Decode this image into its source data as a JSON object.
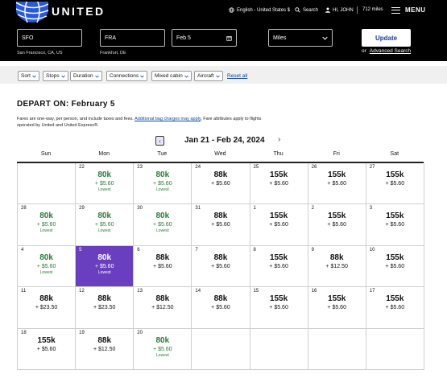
{
  "header": {
    "brand": "UNITED",
    "language": "English - United States $",
    "search": "Search",
    "user": "HI, JOHN",
    "miles": "712 miles",
    "menu": "MENU"
  },
  "search": {
    "from": "SFO",
    "from_sub": "San Francisco, CA, US",
    "to": "FRA",
    "to_sub": "Frankfurt, DE",
    "date": "Feb 5",
    "fare_type": "Miles",
    "update": "Update",
    "or": "or",
    "advanced": "Advanced Search"
  },
  "filters": [
    "Sort",
    "Stops",
    "Duration",
    "Connections",
    "Mixed cabin",
    "Aircraft"
  ],
  "reset_all": "Reset all",
  "depart_on": "DEPART ON: February 5",
  "note": {
    "pre": "Fares are one-way, per person, and include taxes and fees.",
    "link": "Additional bag charges may apply",
    "post": ", Fare attributes apply to flights operated by United and United Express®."
  },
  "calendar": {
    "range": "Jan 21 - Feb 24, 2024",
    "days": [
      "Sun",
      "Mon",
      "Tue",
      "Wed",
      "Thu",
      "Fri",
      "Sat"
    ],
    "lowest_label": "Lowest",
    "cells": [
      {
        "day": "",
        "price": "",
        "fee": "",
        "low": false
      },
      {
        "day": "22",
        "price": "80k",
        "fee": "+ $5.60",
        "low": true
      },
      {
        "day": "23",
        "price": "80k",
        "fee": "+ $5.60",
        "low": true
      },
      {
        "day": "24",
        "price": "88k",
        "fee": "+ $5.60",
        "low": false
      },
      {
        "day": "25",
        "price": "155k",
        "fee": "+ $5.60",
        "low": false
      },
      {
        "day": "26",
        "price": "155k",
        "fee": "+ $5.60",
        "low": false
      },
      {
        "day": "27",
        "price": "155k",
        "fee": "+ $5.60",
        "low": false
      },
      {
        "day": "28",
        "price": "80k",
        "fee": "+ $5.60",
        "low": true
      },
      {
        "day": "29",
        "price": "80k",
        "fee": "+ $5.60",
        "low": true
      },
      {
        "day": "30",
        "price": "80k",
        "fee": "+ $5.60",
        "low": true
      },
      {
        "day": "31",
        "price": "88k",
        "fee": "+ $5.60",
        "low": false
      },
      {
        "day": "1",
        "price": "155k",
        "fee": "+ $5.60",
        "low": false
      },
      {
        "day": "2",
        "price": "155k",
        "fee": "+ $5.60",
        "low": false
      },
      {
        "day": "3",
        "price": "155k",
        "fee": "+ $5.60",
        "low": false
      },
      {
        "day": "4",
        "price": "80k",
        "fee": "+ $5.60",
        "low": true
      },
      {
        "day": "5",
        "price": "80k",
        "fee": "+ $5.60",
        "low": true,
        "selected": true
      },
      {
        "day": "6",
        "price": "88k",
        "fee": "+ $5.60",
        "low": false
      },
      {
        "day": "7",
        "price": "88k",
        "fee": "+ $5.60",
        "low": false
      },
      {
        "day": "8",
        "price": "155k",
        "fee": "+ $5.60",
        "low": false
      },
      {
        "day": "9",
        "price": "88k",
        "fee": "+ $12.50",
        "low": false
      },
      {
        "day": "10",
        "price": "155k",
        "fee": "+ $5.60",
        "low": false
      },
      {
        "day": "11",
        "price": "88k",
        "fee": "+ $23.50",
        "low": false
      },
      {
        "day": "12",
        "price": "88k",
        "fee": "+ $23.50",
        "low": false
      },
      {
        "day": "13",
        "price": "88k",
        "fee": "+ $12.50",
        "low": false
      },
      {
        "day": "14",
        "price": "88k",
        "fee": "+ $5.60",
        "low": false
      },
      {
        "day": "15",
        "price": "155k",
        "fee": "+ $5.60",
        "low": false
      },
      {
        "day": "16",
        "price": "155k",
        "fee": "+ $5.60",
        "low": false
      },
      {
        "day": "17",
        "price": "155k",
        "fee": "+ $5.60",
        "low": false
      },
      {
        "day": "18",
        "price": "155k",
        "fee": "+ $5.60",
        "low": false
      },
      {
        "day": "19",
        "price": "88k",
        "fee": "+ $12.50",
        "low": false
      },
      {
        "day": "20",
        "price": "80k",
        "fee": "+ $5.60",
        "low": true
      },
      {
        "day": "",
        "price": "",
        "fee": "",
        "low": false
      },
      {
        "day": "",
        "price": "",
        "fee": "",
        "low": false
      },
      {
        "day": "",
        "price": "",
        "fee": "",
        "low": false
      },
      {
        "day": "",
        "price": "",
        "fee": "",
        "low": false
      }
    ]
  },
  "colors": {
    "lowest": "#2a7a3a",
    "selected": "#6a3fbf",
    "link": "#0b4aa2",
    "globe": "#2a5bd7"
  }
}
